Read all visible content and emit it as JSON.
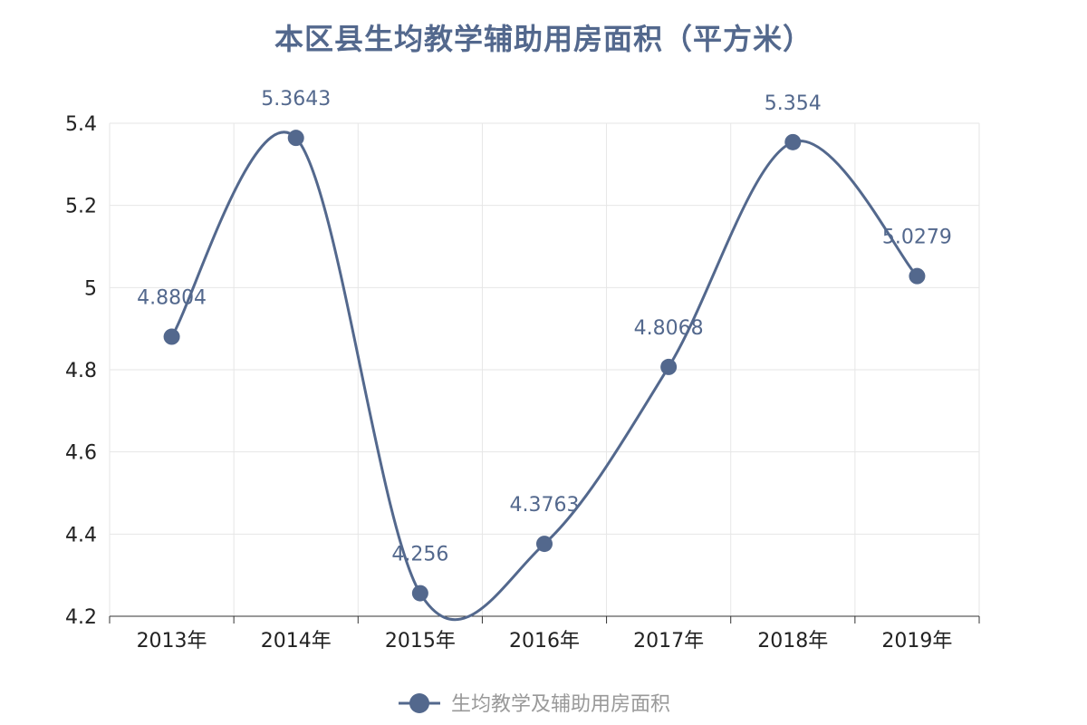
{
  "title": "本区县生均教学辅助用房面积（平方米）",
  "colors": {
    "series": "#53688d",
    "title": "#53688d",
    "grid": "#e6e6e6",
    "legend_text": "#999999"
  },
  "chart_data": {
    "type": "line",
    "smooth": true,
    "title": "本区县生均教学辅助用房面积（平方米）",
    "categories": [
      "2013年",
      "2014年",
      "2015年",
      "2016年",
      "2017年",
      "2018年",
      "2019年"
    ],
    "series": [
      {
        "name": "生均教学及辅助用房面积",
        "values": [
          4.8804,
          5.3643,
          4.256,
          4.3763,
          4.8068,
          5.354,
          5.0279
        ],
        "labels": [
          "4.8804",
          "5.3643",
          "4.256",
          "4.3763",
          "4.8068",
          "5.354",
          "5.0279"
        ]
      }
    ],
    "ylim": [
      4.2,
      5.4
    ],
    "yticks": [
      "4.2",
      "4.4",
      "4.6",
      "4.8",
      "5",
      "5.2",
      "5.4"
    ],
    "grid": true,
    "legend_position": "bottom-center"
  }
}
